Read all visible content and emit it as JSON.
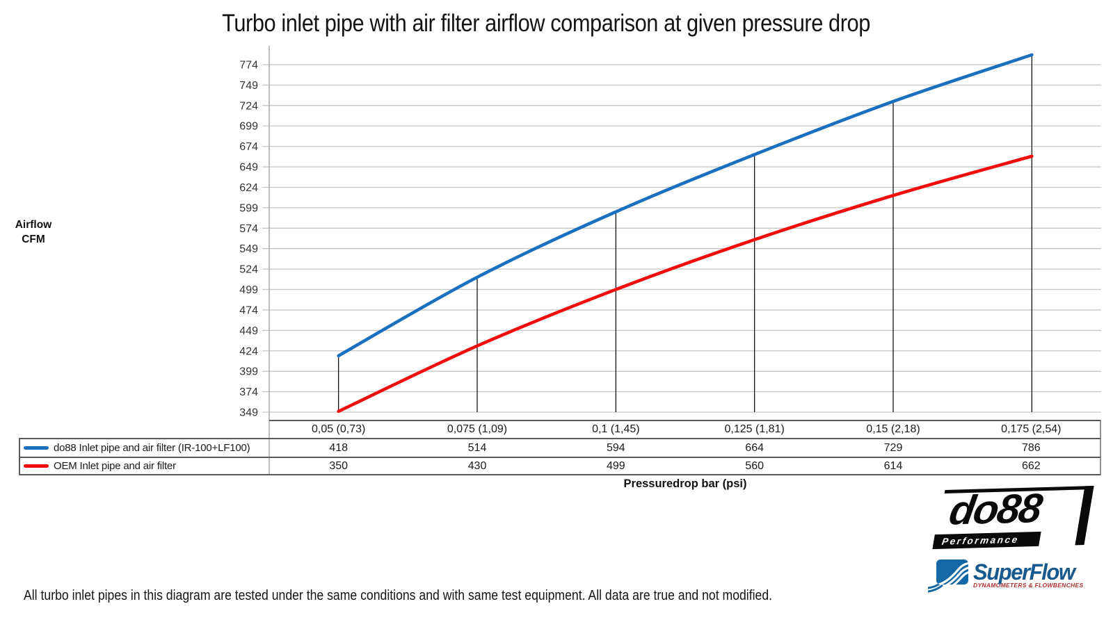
{
  "title": "Turbo inlet pipe with air filter airflow comparison at given pressure drop",
  "y_axis": {
    "label_line1": "Airflow",
    "label_line2": "CFM"
  },
  "x_axis": {
    "label": "Pressuredrop bar (psi)"
  },
  "footer": "All turbo inlet pipes in this diagram are tested under the same conditions and with same test equipment. All data are true and not modified.",
  "chart_data": {
    "type": "line",
    "title": "Turbo inlet pipe with air filter airflow comparison at given pressure drop",
    "xlabel": "Pressuredrop bar (psi)",
    "ylabel": "Airflow CFM",
    "categories": [
      "0,05 (0,73)",
      "0,075 (1,09)",
      "0,1 (1,45)",
      "0,125 (1,81)",
      "0,15 (2,18)",
      "0,175 (2,54)"
    ],
    "series": [
      {
        "name": "do88 Inlet pipe and air filter (IR-100+LF100)",
        "color": "#1B6FBF",
        "values": [
          418,
          514,
          594,
          664,
          729,
          786
        ]
      },
      {
        "name": "OEM Inlet pipe and air filter",
        "color": "#F20D0D",
        "values": [
          350,
          430,
          499,
          560,
          614,
          662
        ]
      }
    ],
    "ylim": [
      349,
      774
    ],
    "ytick_step": 25,
    "yticks": [
      774,
      749,
      724,
      699,
      674,
      649,
      624,
      599,
      574,
      549,
      524,
      499,
      474,
      449,
      424,
      399,
      374,
      349
    ],
    "grid": true,
    "drop_lines": "vertical black line from do88 point down to baseline at each category",
    "legend_position": "left column of data table",
    "smooth": true
  },
  "colors": {
    "grid": "#C6C6C6",
    "axis": "#A3A3A3",
    "drop_line": "#000000",
    "tick_text": "#333333",
    "table_border": "#595959"
  },
  "logos": {
    "do88": {
      "text": "do88",
      "subtext": "Performance"
    },
    "superflow": {
      "text": "SuperFlow",
      "subtext": "DYNAMOMETERS & FLOWBENCHES"
    }
  }
}
